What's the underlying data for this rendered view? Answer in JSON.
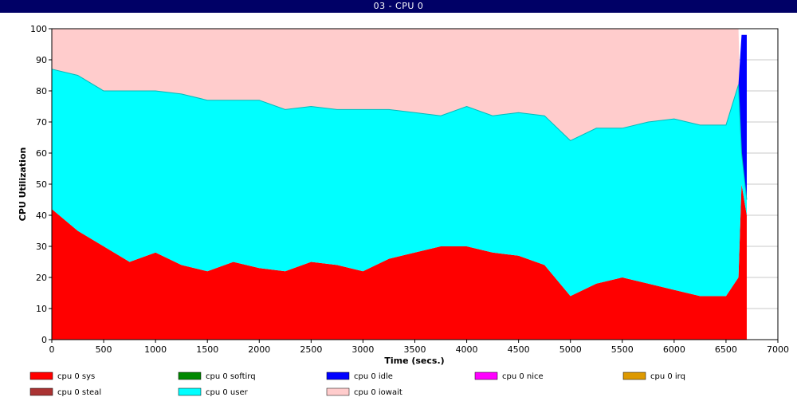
{
  "window": {
    "title": "03 - CPU 0"
  },
  "chart_data": {
    "type": "area",
    "title": "03 - CPU 0",
    "xlabel": "Time (secs.)",
    "ylabel": "CPU Utilization",
    "xlim": [
      0,
      7000
    ],
    "ylim": [
      0,
      100
    ],
    "x_ticks": [
      0,
      500,
      1000,
      1500,
      2000,
      2500,
      3000,
      3500,
      4000,
      4500,
      5000,
      5500,
      6000,
      6500,
      7000
    ],
    "y_ticks": [
      0,
      10,
      20,
      30,
      40,
      50,
      60,
      70,
      80,
      90,
      100
    ],
    "grid": "horizontal",
    "legend_position": "bottom",
    "legend": [
      {
        "name": "cpu 0 sys",
        "color": "#ff0000"
      },
      {
        "name": "cpu 0 softirq",
        "color": "#008800"
      },
      {
        "name": "cpu 0 idle",
        "color": "#0000ff"
      },
      {
        "name": "cpu 0 nice",
        "color": "#ff00ff"
      },
      {
        "name": "cpu 0 irq",
        "color": "#dd9900"
      },
      {
        "name": "cpu 0 steal",
        "color": "#aa3333"
      },
      {
        "name": "cpu 0 user",
        "color": "#00ffff"
      },
      {
        "name": "cpu 0 iowait",
        "color": "#ffcccc"
      }
    ],
    "series": [
      {
        "name": "cpu 0 sys",
        "x": [
          0,
          250,
          500,
          750,
          1000,
          1250,
          1500,
          1750,
          2000,
          2250,
          2500,
          2750,
          3000,
          3250,
          3500,
          3750,
          4000,
          4250,
          4500,
          4750,
          5000,
          5250,
          5500,
          5750,
          6000,
          6250,
          6500,
          6620,
          6650,
          6700
        ],
        "values": [
          42,
          35,
          30,
          25,
          28,
          24,
          22,
          25,
          23,
          22,
          25,
          24,
          22,
          26,
          28,
          30,
          30,
          28,
          27,
          24,
          14,
          18,
          20,
          18,
          16,
          14,
          14,
          20,
          50,
          40
        ]
      },
      {
        "name": "cpu 0 user",
        "x": [
          0,
          250,
          500,
          750,
          1000,
          1250,
          1500,
          1750,
          2000,
          2250,
          2500,
          2750,
          3000,
          3250,
          3500,
          3750,
          4000,
          4250,
          4500,
          4750,
          5000,
          5250,
          5500,
          5750,
          6000,
          6250,
          6500,
          6620,
          6650,
          6700
        ],
        "values": [
          45,
          50,
          50,
          55,
          52,
          55,
          55,
          52,
          54,
          52,
          50,
          50,
          52,
          48,
          45,
          42,
          45,
          44,
          46,
          48,
          50,
          50,
          48,
          52,
          55,
          55,
          55,
          62,
          10,
          5
        ]
      },
      {
        "name": "cpu 0 iowait",
        "x": [
          0,
          250,
          500,
          750,
          1000,
          1250,
          1500,
          1750,
          2000,
          2250,
          2500,
          2750,
          3000,
          3250,
          3500,
          3750,
          4000,
          4250,
          4500,
          4750,
          5000,
          5250,
          5500,
          5750,
          6000,
          6250,
          6500,
          6620,
          6650,
          6700
        ],
        "values": [
          13,
          15,
          20,
          20,
          20,
          21,
          23,
          23,
          23,
          26,
          25,
          26,
          26,
          26,
          27,
          28,
          25,
          28,
          27,
          28,
          36,
          32,
          32,
          30,
          29,
          31,
          31,
          18,
          2,
          2
        ]
      },
      {
        "name": "cpu 0 idle",
        "x": [
          6620,
          6650,
          6700
        ],
        "values": [
          0,
          38,
          53
        ]
      }
    ]
  }
}
